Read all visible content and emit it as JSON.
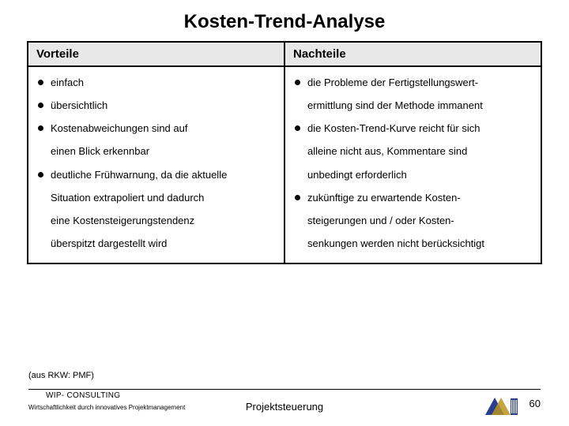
{
  "title": "Kosten-Trend-Analyse",
  "headers": {
    "left": "Vorteile",
    "right": "Nachteile"
  },
  "left_lines": [
    {
      "bullet": true,
      "text": "einfach"
    },
    {
      "bullet": true,
      "text": "übersichtlich"
    },
    {
      "bullet": true,
      "text": "Kostenabweichungen sind auf"
    },
    {
      "bullet": false,
      "text": "einen Blick erkennbar"
    },
    {
      "bullet": true,
      "text": "deutliche Frühwarnung, da die aktuelle"
    },
    {
      "bullet": false,
      "text": "Situation extrapoliert und dadurch"
    },
    {
      "bullet": false,
      "text": "eine Kostensteigerungstendenz"
    },
    {
      "bullet": false,
      "text": "überspitzt dargestellt wird"
    }
  ],
  "right_lines": [
    {
      "bullet": true,
      "text": "die Probleme der Fertigstellungswert-"
    },
    {
      "bullet": false,
      "text": "ermittlung sind der Methode immanent"
    },
    {
      "bullet": true,
      "text": "die Kosten-Trend-Kurve reicht für sich"
    },
    {
      "bullet": false,
      "text": "alleine nicht aus, Kommentare sind"
    },
    {
      "bullet": false,
      "text": "unbedingt erforderlich"
    },
    {
      "bullet": true,
      "text": "zukünftige zu erwartende Kosten-"
    },
    {
      "bullet": false,
      "text": "steigerungen und / oder Kosten-"
    },
    {
      "bullet": false,
      "text": "senkungen werden nicht berücksichtigt"
    }
  ],
  "source": "(aus RKW: PMF)",
  "footer": {
    "brand": "WIP- CONSULTING",
    "tagline": "Wirtschaftlichkeit durch innovatives Projektmanagement",
    "center": "Projektsteuerung",
    "page": "60"
  },
  "colors": {
    "header_bg": "#e8e8e8",
    "logo_blue": "#2a3e8f",
    "logo_gold": "#b8941f"
  }
}
